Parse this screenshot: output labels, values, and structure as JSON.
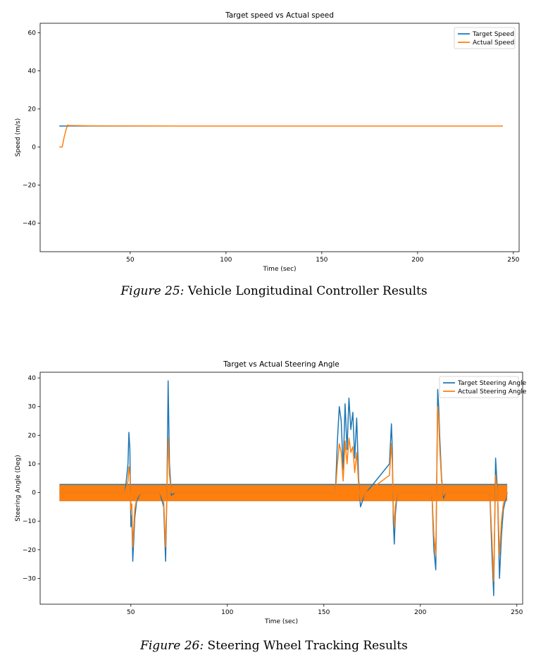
{
  "figures": [
    {
      "caption_label": "Figure 25:",
      "caption_text": " Vehicle Longitudinal Controller Results"
    },
    {
      "caption_label": "Figure 26:",
      "caption_text": " Steering Wheel Tracking Results"
    }
  ],
  "chart_data": [
    {
      "type": "line",
      "title": "Target speed vs Actual speed",
      "xlabel": "Time (sec)",
      "ylabel": "Speed (m/s)",
      "xlim": [
        3,
        253
      ],
      "ylim": [
        -55,
        65
      ],
      "xticks": [
        50,
        100,
        150,
        200,
        250
      ],
      "yticks": [
        -40,
        -20,
        0,
        20,
        40,
        60
      ],
      "ytick_labels": [
        "−40",
        "−20",
        "0",
        "20",
        "40",
        "60"
      ],
      "legend_position": "top-right",
      "grid": false,
      "series": [
        {
          "name": "Target Speed",
          "color": "#1f77b4",
          "x": [
            13,
            244.5
          ],
          "y": [
            11,
            11
          ]
        },
        {
          "name": "Actual Speed",
          "color": "#ff7f0e",
          "x": [
            13,
            14.5,
            15.5,
            16.5,
            17.3,
            18,
            30,
            100,
            244.5
          ],
          "y": [
            0,
            0,
            5,
            9,
            11.5,
            11.3,
            11.1,
            11,
            11
          ]
        }
      ]
    },
    {
      "type": "line",
      "title": "Target vs Actual Steering Angle",
      "xlabel": "Time (sec)",
      "ylabel": "Steering Angle (Deg)",
      "xlim": [
        3,
        253
      ],
      "ylim": [
        -39,
        42
      ],
      "xticks": [
        50,
        100,
        150,
        200,
        250
      ],
      "yticks": [
        -30,
        -20,
        -10,
        0,
        10,
        20,
        30,
        40
      ],
      "ytick_labels": [
        "−30",
        "−20",
        "−10",
        "0",
        "10",
        "20",
        "30",
        "40"
      ],
      "legend_position": "top-right",
      "grid": false,
      "oscillation_band": {
        "low": -3,
        "high": 3,
        "start": 13,
        "end": 245
      },
      "series": [
        {
          "name": "Target Steering Angle",
          "color": "#1f77b4",
          "x": [
            13,
            47,
            48.5,
            49,
            49.5,
            50,
            50.5,
            51,
            52,
            53,
            55,
            65,
            67,
            68,
            68.7,
            69.3,
            70,
            71,
            73,
            156,
            157,
            158,
            159,
            160,
            161,
            162,
            163,
            164,
            165,
            166,
            167,
            168,
            169,
            170,
            171,
            172,
            184,
            185,
            185.5,
            186,
            186.5,
            187,
            188,
            206,
            207,
            208,
            209,
            209.5,
            210,
            211,
            212,
            213,
            236,
            237,
            238,
            239,
            240,
            241,
            242,
            243,
            245
          ],
          "y": [
            0,
            0,
            10,
            21,
            15,
            -12,
            -8,
            -24,
            -9,
            -3,
            0,
            0,
            -5,
            -24,
            0,
            39,
            10,
            -1,
            0,
            0,
            18,
            30,
            25,
            8,
            31,
            15,
            33,
            22,
            28,
            12,
            26,
            5,
            -5,
            -3,
            0,
            0,
            10,
            24,
            15,
            -10,
            -18,
            -8,
            0,
            0,
            -20,
            -27,
            36,
            30,
            20,
            5,
            -2,
            0,
            0,
            -20,
            -36,
            12,
            0,
            -30,
            -15,
            -6,
            0
          ]
        },
        {
          "name": "Actual Steering Angle",
          "color": "#ff7f0e",
          "x": [
            13,
            47,
            48.5,
            49,
            49.5,
            50,
            50.5,
            51,
            52,
            53,
            55,
            65,
            67,
            68,
            68.7,
            69.3,
            70,
            71,
            73,
            156,
            157,
            158,
            159,
            160,
            161,
            162,
            163,
            164,
            165,
            166,
            167,
            168,
            169,
            170,
            171,
            172,
            184,
            185,
            185.5,
            186,
            186.5,
            187,
            188,
            206,
            207,
            208,
            209,
            209.5,
            210,
            211,
            212,
            213,
            236,
            237,
            238,
            239,
            240,
            241,
            242,
            243,
            245
          ],
          "y": [
            0,
            0,
            4,
            9,
            6,
            -6,
            -4,
            -19,
            -6,
            -2,
            0,
            0,
            -3,
            -19,
            0,
            19,
            6,
            0,
            0,
            0,
            10,
            17,
            14,
            4,
            18,
            10,
            19,
            14,
            16,
            7,
            14,
            3,
            -3,
            -2,
            0,
            0,
            6,
            17,
            10,
            -6,
            -12,
            -5,
            0,
            0,
            -15,
            -22,
            30,
            26,
            16,
            4,
            -1,
            0,
            0,
            -15,
            -31,
            6,
            0,
            -22,
            -10,
            -4,
            0
          ]
        }
      ]
    }
  ]
}
